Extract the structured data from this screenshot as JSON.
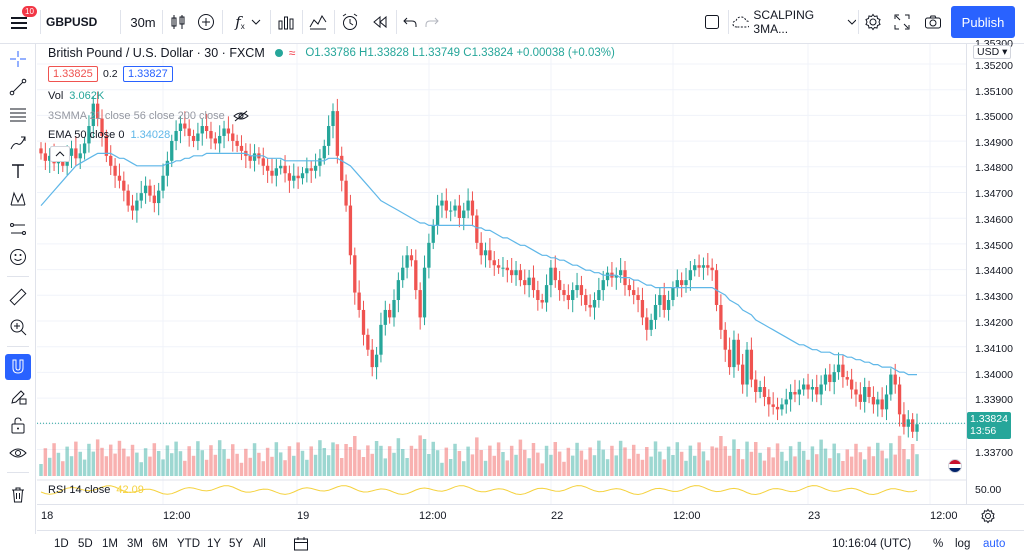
{
  "toolbar": {
    "symbol": "GBPUSD",
    "notification_count": "10",
    "interval": "30m",
    "fx_label": "f",
    "layout_name": "SCALPING 3MA...",
    "publish_label": "Publish"
  },
  "legend": {
    "title": "British Pound / U.S. Dollar · 30 · FXCM",
    "ohlc": "O1.33786 H1.33828 L1.33749 C1.33824 +0.00038 (+0.03%)",
    "bid": "1.33825",
    "spread": "0.2",
    "ask": "1.33827",
    "vol_label": "Vol",
    "vol_value": "3.062K",
    "smma_label": "3SMMA 21 close 56 close 200 close",
    "ema_label": "EMA 50 close 0",
    "ema_value": "1.34028",
    "rsi_label": "RSI 14 close",
    "rsi_value": "42.09"
  },
  "price_axis": {
    "currency": "USD",
    "ticks": [
      "1.35300",
      "1.35200",
      "1.35100",
      "1.35000",
      "1.34900",
      "1.34800",
      "1.34700",
      "1.34600",
      "1.34500",
      "1.34400",
      "1.34300",
      "1.34200",
      "1.34100",
      "1.34000",
      "1.33900",
      "1.33700"
    ],
    "current_price": "1.33824",
    "countdown": "13:56",
    "rsi_tick": "50.00"
  },
  "time_axis": {
    "ticks": [
      "18",
      "12:00",
      "19",
      "12:00",
      "22",
      "12:00",
      "23",
      "12:00"
    ]
  },
  "bottom": {
    "ranges": [
      "1D",
      "5D",
      "1M",
      "3M",
      "6M",
      "YTD",
      "1Y",
      "5Y",
      "All"
    ],
    "clock": "10:16:04 (UTC)",
    "percent_label": "%",
    "log_label": "log",
    "auto_label": "auto"
  },
  "colors": {
    "up": "#26a69a",
    "down": "#ef5350",
    "ema": "#5fb7e8",
    "rsi": "#f5d23f",
    "accent": "#2962ff"
  },
  "chart_data": {
    "type": "candlestick",
    "closes": [
      1.3491,
      1.3488,
      1.349,
      1.3487,
      1.3489,
      1.3486,
      1.349,
      1.3493,
      1.3489,
      1.3491,
      1.3495,
      1.3502,
      1.3511,
      1.3505,
      1.3498,
      1.349,
      1.3486,
      1.3482,
      1.348,
      1.3476,
      1.347,
      1.3468,
      1.3472,
      1.3475,
      1.3478,
      1.3474,
      1.3471,
      1.3476,
      1.3482,
      1.3488,
      1.3496,
      1.35,
      1.3503,
      1.3501,
      1.3498,
      1.3496,
      1.3499,
      1.3502,
      1.35,
      1.3497,
      1.3495,
      1.3498,
      1.3501,
      1.3499,
      1.3496,
      1.3494,
      1.3492,
      1.349,
      1.3488,
      1.3491,
      1.3489,
      1.3486,
      1.3484,
      1.3482,
      1.3485,
      1.3486,
      1.3483,
      1.348,
      1.3482,
      1.3481,
      1.3483,
      1.3485,
      1.3484,
      1.3486,
      1.3489,
      1.3494,
      1.3502,
      1.3508,
      1.349,
      1.348,
      1.347,
      1.345,
      1.3435,
      1.3428,
      1.3418,
      1.3412,
      1.3405,
      1.341,
      1.3422,
      1.3428,
      1.3425,
      1.3432,
      1.344,
      1.3445,
      1.345,
      1.3448,
      1.3436,
      1.3425,
      1.3445,
      1.3455,
      1.3462,
      1.347,
      1.3472,
      1.3468,
      1.3468,
      1.347,
      1.3465,
      1.3468,
      1.3472,
      1.3466,
      1.3455,
      1.345,
      1.3452,
      1.3448,
      1.3446,
      1.3445,
      1.3445,
      1.3444,
      1.3442,
      1.3444,
      1.344,
      1.3438,
      1.3441,
      1.3436,
      1.3432,
      1.3431,
      1.3438,
      1.3445,
      1.344,
      1.3436,
      1.3434,
      1.3432,
      1.3436,
      1.3438,
      1.3434,
      1.343,
      1.3429,
      1.3432,
      1.3436,
      1.344,
      1.3443,
      1.3441,
      1.3442,
      1.3444,
      1.3438,
      1.3436,
      1.3434,
      1.3432,
      1.3425,
      1.342,
      1.3424,
      1.343,
      1.3434,
      1.3428,
      1.3432,
      1.3437,
      1.344,
      1.3438,
      1.344,
      1.3444,
      1.3446,
      1.3445,
      1.3446,
      1.3445,
      1.3444,
      1.343,
      1.342,
      1.3412,
      1.3405,
      1.3416,
      1.3406,
      1.3398,
      1.3412,
      1.34,
      1.3395,
      1.3397,
      1.3393,
      1.339,
      1.3389,
      1.3388,
      1.339,
      1.3392,
      1.3395,
      1.3394,
      1.3396,
      1.3398,
      1.3396,
      1.3397,
      1.3394,
      1.3398,
      1.3402,
      1.3399,
      1.3403,
      1.3406,
      1.3401,
      1.34,
      1.3396,
      1.3394,
      1.3391,
      1.3397,
      1.3393,
      1.339,
      1.3392,
      1.3388,
      1.3394,
      1.3402,
      1.3398,
      1.3386,
      1.3381,
      1.3384,
      1.3379,
      1.3382
    ],
    "ema": [
      1.347,
      1.3472,
      1.3474,
      1.3476,
      1.3478,
      1.348,
      1.3482,
      1.3484,
      1.3486,
      1.3487,
      1.3488,
      1.3489,
      1.349,
      1.3491,
      1.3491,
      1.3491,
      1.3491,
      1.349,
      1.3489,
      1.3489,
      1.3488,
      1.3487,
      1.3486,
      1.3486,
      1.3486,
      1.3486,
      1.3486,
      1.3486,
      1.3486,
      1.3487,
      1.3487,
      1.3488,
      1.3488,
      1.3489,
      1.3489,
      1.349,
      1.349,
      1.349,
      1.3491,
      1.3491,
      1.3491,
      1.3491,
      1.3491,
      1.3491,
      1.3491,
      1.3491,
      1.3491,
      1.3491,
      1.349,
      1.349,
      1.349,
      1.349,
      1.3489,
      1.3489,
      1.3489,
      1.3489,
      1.3488,
      1.3488,
      1.3488,
      1.3488,
      1.3488,
      1.3488,
      1.3488,
      1.3488,
      1.3488,
      1.3488,
      1.3489,
      1.3489,
      1.3489,
      1.3488,
      1.3487,
      1.3486,
      1.3484,
      1.3482,
      1.348,
      1.3478,
      1.3476,
      1.3474,
      1.3472,
      1.3471,
      1.347,
      1.3469,
      1.3468,
      1.3467,
      1.3466,
      1.3465,
      1.3464,
      1.3463,
      1.3463,
      1.3462,
      1.3462,
      1.3462,
      1.3462,
      1.3462,
      1.3462,
      1.3462,
      1.3462,
      1.3462,
      1.3462,
      1.3462,
      1.3461,
      1.3461,
      1.346,
      1.346,
      1.3459,
      1.3458,
      1.3457,
      1.3457,
      1.3456,
      1.3455,
      1.3454,
      1.3454,
      1.3453,
      1.3452,
      1.3451,
      1.345,
      1.345,
      1.3449,
      1.3449,
      1.3448,
      1.3448,
      1.3447,
      1.3446,
      1.3446,
      1.3445,
      1.3444,
      1.3444,
      1.3443,
      1.3443,
      1.3442,
      1.3442,
      1.3442,
      1.3442,
      1.3441,
      1.3441,
      1.3441,
      1.344,
      1.344,
      1.3439,
      1.3438,
      1.3438,
      1.3437,
      1.3437,
      1.3437,
      1.3437,
      1.3437,
      1.3437,
      1.3437,
      1.3437,
      1.3437,
      1.3437,
      1.3437,
      1.3437,
      1.3437,
      1.3437,
      1.3436,
      1.3435,
      1.3434,
      1.3432,
      1.3431,
      1.343,
      1.3428,
      1.3427,
      1.3426,
      1.3424,
      1.3423,
      1.3422,
      1.3421,
      1.342,
      1.3419,
      1.3418,
      1.3417,
      1.3416,
      1.3415,
      1.3414,
      1.3414,
      1.3413,
      1.3412,
      1.3412,
      1.3411,
      1.3411,
      1.3411,
      1.341,
      1.341,
      1.341,
      1.3409,
      1.3409,
      1.3408,
      1.3408,
      1.3407,
      1.3407,
      1.3406,
      1.3406,
      1.3405,
      1.3405,
      1.3405,
      1.3404,
      1.3403,
      1.3403,
      1.3402,
      1.3402,
      1.3402
    ],
    "ylim": [
      1.3362,
      1.3535
    ]
  }
}
